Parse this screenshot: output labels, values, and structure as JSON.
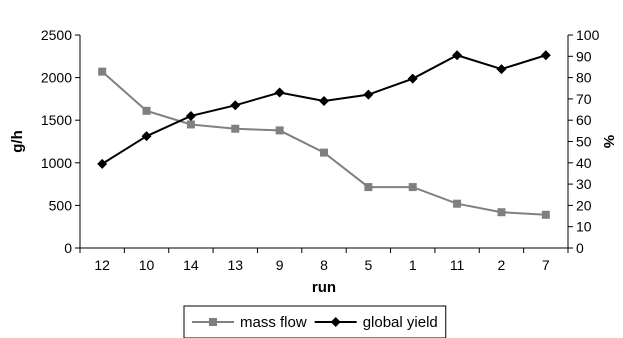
{
  "chart_data": {
    "type": "line",
    "title": "",
    "xlabel": "run",
    "ylabel": "g/h",
    "y2label": "%",
    "categories": [
      "12",
      "10",
      "14",
      "13",
      "9",
      "8",
      "5",
      "1",
      "11",
      "2",
      "7"
    ],
    "series": [
      {
        "name": "mass flow",
        "axis": "left",
        "color": "#808080",
        "marker": "square",
        "values": [
          2070,
          1610,
          1450,
          1400,
          1380,
          1120,
          715,
          715,
          520,
          420,
          390
        ]
      },
      {
        "name": "global yield",
        "axis": "right",
        "color": "#000000",
        "marker": "diamond",
        "values": [
          39.5,
          52.5,
          62,
          67,
          73,
          69,
          72,
          79.5,
          90.5,
          84,
          90.5
        ]
      }
    ],
    "ylim": [
      0,
      2500
    ],
    "yticks": [
      "0",
      "500",
      "1000",
      "1500",
      "2000",
      "2500"
    ],
    "y2lim": [
      0,
      100
    ],
    "y2ticks": [
      "0",
      "10",
      "20",
      "30",
      "40",
      "50",
      "60",
      "70",
      "80",
      "90",
      "100"
    ],
    "grid": false,
    "legend_position": "bottom"
  }
}
